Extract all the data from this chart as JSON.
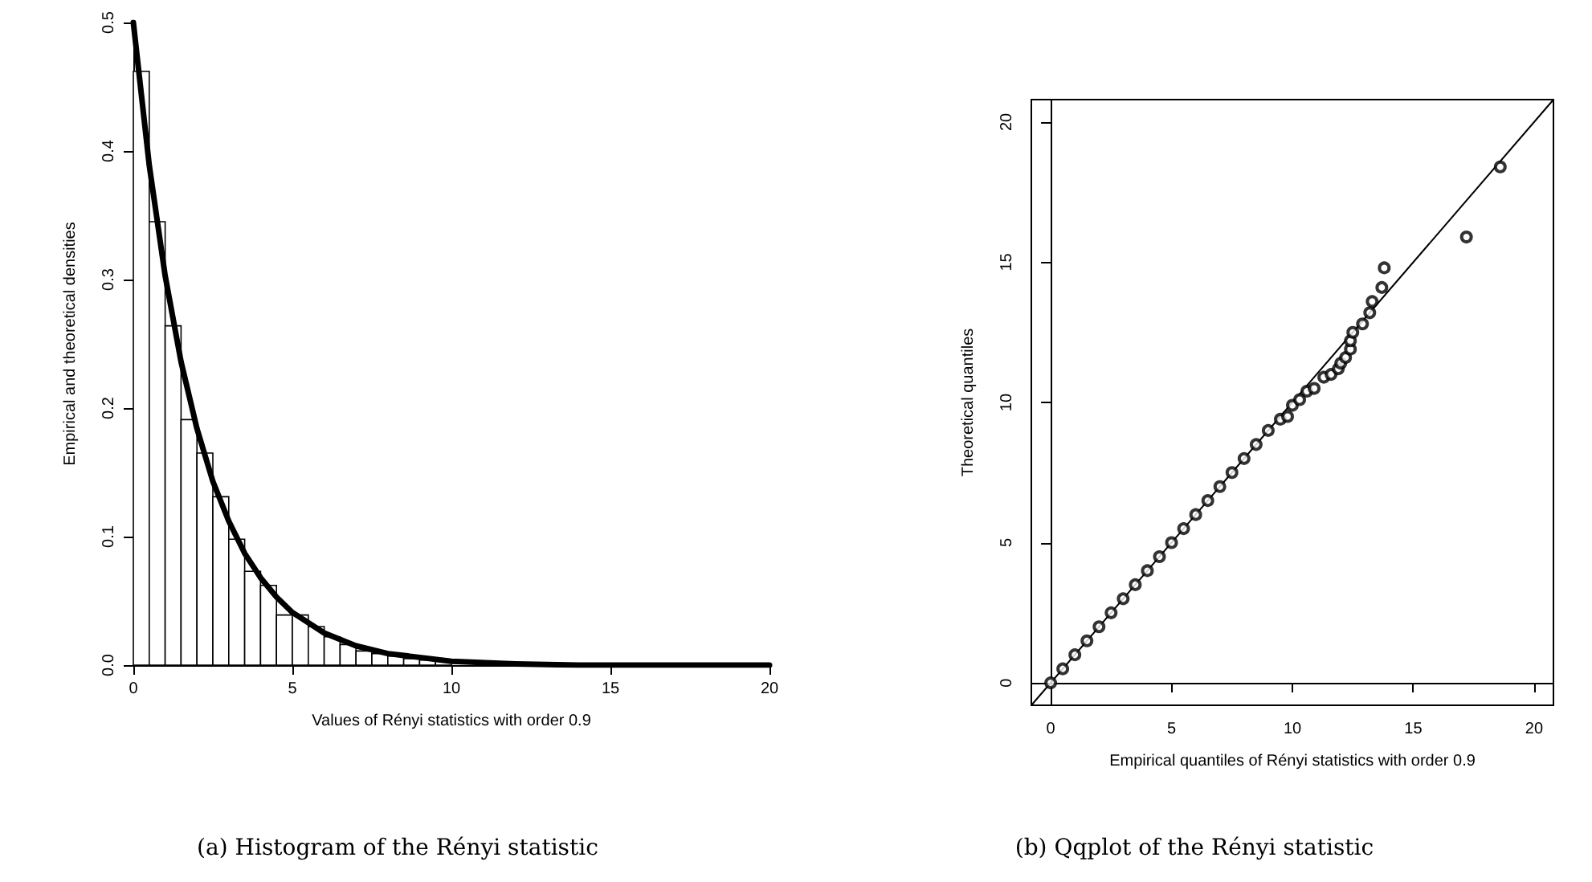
{
  "chart_data": [
    {
      "type": "histogram",
      "xlabel": "Values of Rényi statistics with order 0.9",
      "ylabel": "Empirical and theoretical densities",
      "annotations": [
        "(a) Histogram of the Rényi statistic"
      ],
      "xlim": [
        0,
        20
      ],
      "xticks": [
        0,
        5,
        10,
        15,
        20
      ],
      "ylim": [
        0,
        0.5
      ],
      "yticks": [
        {
          "value": 0,
          "label": "0.0"
        },
        0.1,
        0.2,
        0.3,
        0.4,
        0.5
      ],
      "series": [
        {
          "type": "histogram",
          "color": "#ffffff",
          "bins": [
            0,
            0.5,
            1,
            1.5,
            2,
            2.5,
            3,
            3.5,
            4,
            4.5,
            5,
            5.5,
            6,
            6.5,
            7,
            7.5,
            8,
            8.5,
            9,
            9.5,
            10
          ],
          "values": [
            0.462,
            0.345,
            0.264,
            0.191,
            0.165,
            0.131,
            0.098,
            0.073,
            0.062,
            0.039,
            0.039,
            0.03,
            0.022,
            0.016,
            0.011,
            0.009,
            0.007,
            0.005,
            0.004,
            0.003
          ]
        },
        {
          "type": "line",
          "color": "#000000",
          "marker": "none",
          "x": [
            0,
            0.5,
            1,
            1.5,
            2,
            2.5,
            3,
            3.5,
            4,
            4.5,
            5,
            6,
            7,
            8,
            9,
            10,
            12,
            14,
            16,
            20
          ],
          "values": [
            0.5,
            0.389,
            0.303,
            0.236,
            0.184,
            0.143,
            0.112,
            0.087,
            0.068,
            0.053,
            0.041,
            0.025,
            0.015,
            0.009,
            0.006,
            0.003,
            0.001,
            0,
            0,
            0
          ]
        }
      ]
    },
    {
      "type": "scatter",
      "xlabel": "Empirical quantiles of Rényi statistics with order 0.9",
      "ylabel": "Theoretical quantiles",
      "annotations": [
        "(b) Qqplot of the Rényi statistic"
      ],
      "xlim": [
        -0.8,
        20.8
      ],
      "xticks": [
        0,
        5,
        10,
        15,
        20
      ],
      "ylim": [
        -0.8,
        20.8
      ],
      "yticks": [
        0,
        5,
        10,
        15,
        20
      ],
      "series": [
        {
          "type": "scatter",
          "color": "#000000",
          "marker": "circle",
          "x": [
            0,
            0.5,
            1,
            1.5,
            2,
            2.5,
            3,
            3.5,
            4,
            4.5,
            5,
            5.5,
            6,
            6.5,
            7,
            7.5,
            8,
            8.5,
            9,
            9.5,
            9.8,
            10,
            10.3,
            10.6,
            10.9,
            11.3,
            11.6,
            11.9,
            12,
            12.2,
            12.4,
            12.4,
            12.5,
            12.9,
            13.2,
            13.3,
            13.7,
            13.8,
            17.2,
            18.6
          ],
          "values": [
            0,
            0.5,
            1,
            1.5,
            2,
            2.5,
            3,
            3.5,
            4,
            4.5,
            5,
            5.5,
            6,
            6.5,
            7,
            7.5,
            8,
            8.5,
            9,
            9.4,
            9.5,
            9.9,
            10.1,
            10.4,
            10.5,
            10.9,
            11,
            11.2,
            11.4,
            11.6,
            11.9,
            12.2,
            12.5,
            12.8,
            13.2,
            13.6,
            14.1,
            14.8,
            15.9,
            18.4
          ]
        },
        {
          "type": "line",
          "color": "#000000",
          "marker": "none",
          "x": [
            -0.8,
            20.8
          ],
          "values": [
            -0.8,
            20.8
          ]
        }
      ]
    }
  ]
}
